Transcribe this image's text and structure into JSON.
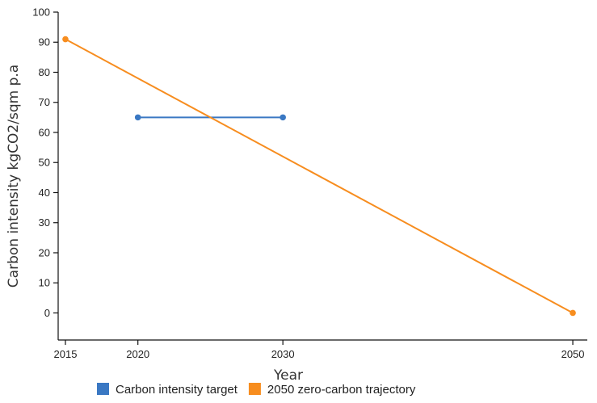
{
  "chart_data": {
    "type": "line",
    "xlabel": "Year",
    "ylabel": "Carbon intensity kgCO2/sqm p.a",
    "xlim": [
      2014.5,
      2051
    ],
    "ylim": [
      -9,
      100
    ],
    "x_ticks": [
      2015,
      2020,
      2030,
      2050
    ],
    "y_ticks": [
      0,
      10,
      20,
      30,
      40,
      50,
      60,
      70,
      80,
      90,
      100
    ],
    "grid": false,
    "legend_position": "bottom",
    "series": [
      {
        "name": "Carbon intensity target",
        "color": "#3a78c3",
        "x": [
          2020,
          2030
        ],
        "y": [
          65,
          65
        ]
      },
      {
        "name": "2050 zero-carbon trajectory",
        "color": "#f78d1f",
        "x": [
          2015,
          2050
        ],
        "y": [
          91,
          0
        ]
      }
    ]
  }
}
